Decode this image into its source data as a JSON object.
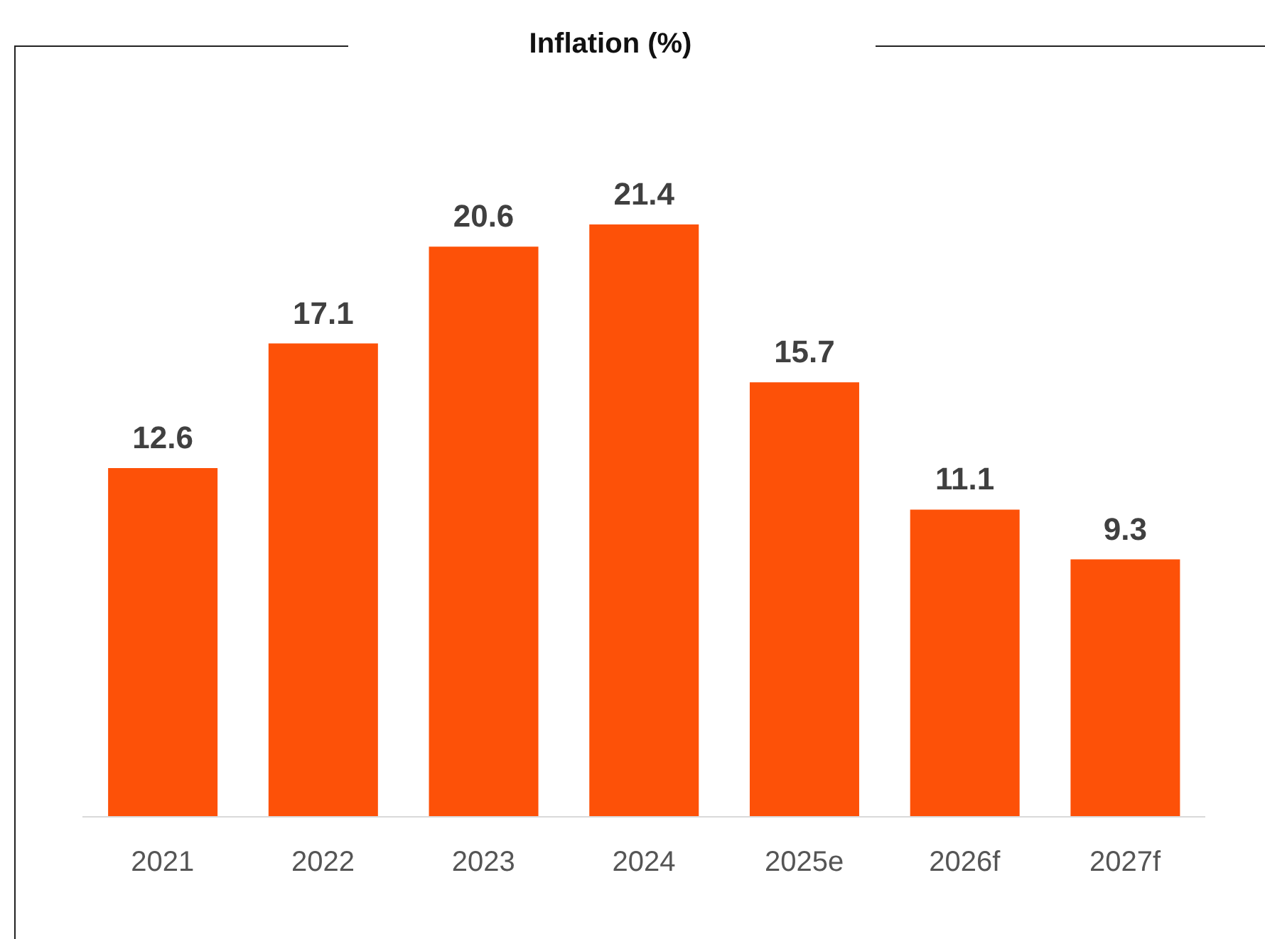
{
  "chart_data": {
    "type": "bar",
    "title": "Inflation (%)",
    "categories": [
      "2021",
      "2022",
      "2023",
      "2024",
      "2025e",
      "2026f",
      "2027f"
    ],
    "values": [
      12.6,
      17.1,
      20.6,
      21.4,
      15.7,
      11.1,
      9.3
    ],
    "color": "#fd5108",
    "data_labels": true,
    "grid": false,
    "legend": false
  }
}
